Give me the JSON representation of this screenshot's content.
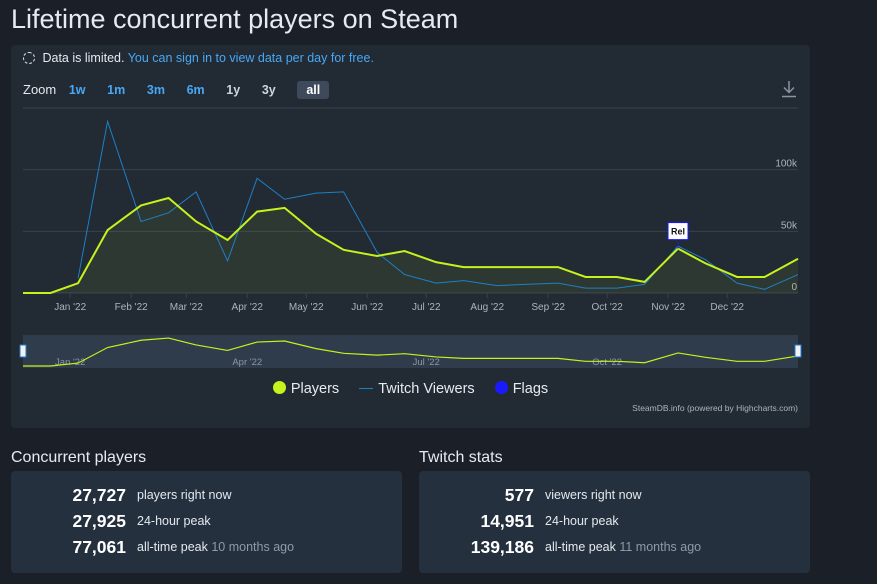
{
  "page": {
    "title": "Lifetime concurrent players on Steam"
  },
  "notice": {
    "limited_text": "Data is limited.",
    "sign_in_link": "You can sign in to view data per day for free."
  },
  "zoom": {
    "label": "Zoom",
    "options": [
      "1w",
      "1m",
      "3m",
      "6m",
      "1y",
      "3y",
      "all"
    ],
    "active": "all"
  },
  "chart_data": {
    "type": "line",
    "x_ticks": [
      "Jan '22",
      "Feb '22",
      "Mar '22",
      "Apr '22",
      "May '22",
      "Jun '22",
      "Jul '22",
      "Aug '22",
      "Sep '22",
      "Oct '22",
      "Nov '22",
      "Dec '22"
    ],
    "y_ticks": [
      "0",
      "50k",
      "100k"
    ],
    "ylim": [
      0,
      150000
    ],
    "series": [
      {
        "name": "Players",
        "color": "#c6f21d",
        "points": [
          [
            "2021-12-08",
            0
          ],
          [
            "2021-12-22",
            0
          ],
          [
            "2022-01-05",
            8000
          ],
          [
            "2022-01-20",
            51000
          ],
          [
            "2022-02-06",
            71000
          ],
          [
            "2022-02-20",
            77000
          ],
          [
            "2022-03-06",
            58000
          ],
          [
            "2022-03-22",
            43000
          ],
          [
            "2022-04-06",
            66000
          ],
          [
            "2022-04-20",
            69000
          ],
          [
            "2022-05-06",
            48000
          ],
          [
            "2022-05-20",
            35000
          ],
          [
            "2022-06-06",
            30000
          ],
          [
            "2022-06-20",
            34000
          ],
          [
            "2022-07-06",
            25000
          ],
          [
            "2022-07-20",
            21000
          ],
          [
            "2022-08-06",
            21000
          ],
          [
            "2022-08-20",
            21000
          ],
          [
            "2022-09-06",
            21000
          ],
          [
            "2022-09-20",
            13000
          ],
          [
            "2022-10-06",
            13000
          ],
          [
            "2022-10-20",
            9000
          ],
          [
            "2022-11-06",
            36000
          ],
          [
            "2022-11-20",
            24000
          ],
          [
            "2022-12-06",
            13000
          ],
          [
            "2022-12-20",
            13000
          ],
          [
            "2023-01-06",
            27727
          ]
        ]
      },
      {
        "name": "Twitch Viewers",
        "color": "#1f7fc4",
        "points": [
          [
            "2022-01-05",
            12000
          ],
          [
            "2022-01-20",
            139186
          ],
          [
            "2022-02-06",
            58000
          ],
          [
            "2022-02-20",
            65000
          ],
          [
            "2022-03-06",
            82000
          ],
          [
            "2022-03-22",
            26000
          ],
          [
            "2022-04-06",
            93000
          ],
          [
            "2022-04-20",
            76000
          ],
          [
            "2022-05-06",
            81000
          ],
          [
            "2022-05-20",
            82000
          ],
          [
            "2022-06-06",
            33000
          ],
          [
            "2022-06-20",
            15000
          ],
          [
            "2022-07-06",
            8000
          ],
          [
            "2022-07-20",
            10000
          ],
          [
            "2022-08-06",
            6000
          ],
          [
            "2022-08-20",
            7000
          ],
          [
            "2022-09-06",
            8000
          ],
          [
            "2022-09-20",
            4000
          ],
          [
            "2022-10-06",
            4000
          ],
          [
            "2022-10-20",
            7000
          ],
          [
            "2022-11-06",
            38000
          ],
          [
            "2022-11-20",
            27000
          ],
          [
            "2022-12-06",
            8000
          ],
          [
            "2022-12-20",
            3000
          ],
          [
            "2023-01-06",
            14951
          ]
        ]
      }
    ],
    "flags": [
      {
        "date": "2022-11-06",
        "label": "Rel"
      }
    ],
    "navigator_ticks": [
      "Jan '22",
      "Apr '22",
      "Jul '22",
      "Oct '22"
    ],
    "legend": [
      {
        "name": "Players",
        "color": "#c6f21d",
        "marker": "dot"
      },
      {
        "name": "Twitch Viewers",
        "color": "#1f7fc4",
        "marker": "line"
      },
      {
        "name": "Flags",
        "color": "#1a1aff",
        "marker": "dot"
      }
    ],
    "legend_position": "bottom-center",
    "credits": "SteamDB.info (powered by Highcharts.com)"
  },
  "concurrent": {
    "title": "Concurrent players",
    "rows": [
      {
        "value": "27,727",
        "label": "players right now",
        "ago": ""
      },
      {
        "value": "27,925",
        "label": "24-hour peak",
        "ago": ""
      },
      {
        "value": "77,061",
        "label": "all-time peak",
        "ago": "10 months ago"
      }
    ]
  },
  "twitch": {
    "title": "Twitch stats",
    "rows": [
      {
        "value": "577",
        "label": "viewers right now",
        "ago": ""
      },
      {
        "value": "14,951",
        "label": "24-hour peak",
        "ago": ""
      },
      {
        "value": "139,186",
        "label": "all-time peak",
        "ago": "11 months ago"
      }
    ]
  }
}
